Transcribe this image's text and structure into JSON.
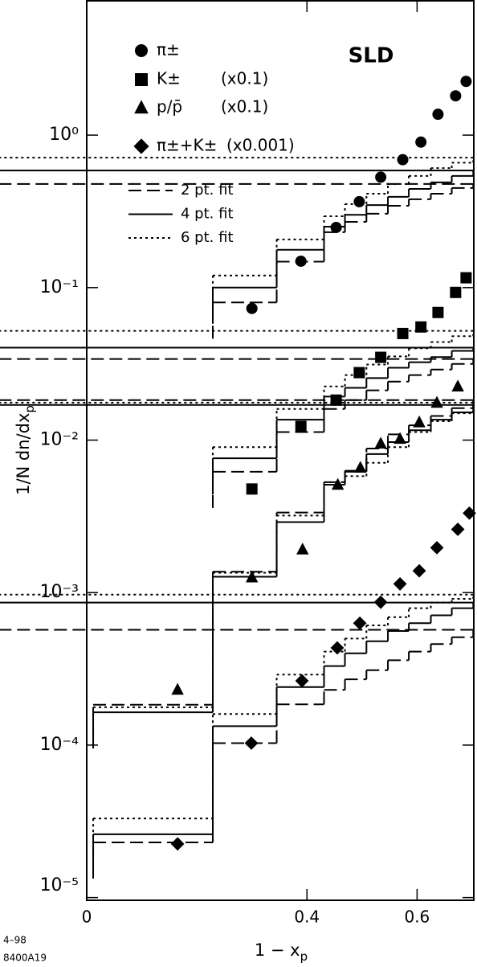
{
  "chart_data": {
    "type": "scatter",
    "log_y": true,
    "annotation": "SLD",
    "footnotes": [
      "4–98",
      "8400A19"
    ],
    "xlabel": {
      "text": "1 − x",
      "sub": "p"
    },
    "ylabel": {
      "text": "1/N dn/dx",
      "sub": "p"
    },
    "xlim": [
      0,
      0.703
    ],
    "ylim": [
      9.6e-06,
      7.6
    ],
    "xticks": [
      0,
      0.4,
      0.6
    ],
    "yticks": [
      {
        "value": 1,
        "label": "10⁰"
      },
      {
        "value": 0.1,
        "label": "10⁻¹"
      },
      {
        "value": 0.01,
        "label": "10⁻²"
      },
      {
        "value": 0.001,
        "label": "10⁻³"
      },
      {
        "value": 0.0001,
        "label": "10⁻⁴"
      },
      {
        "value": 1e-05,
        "label": "10⁻⁵"
      }
    ],
    "color": "#000000",
    "series": [
      {
        "name": "π±",
        "marker": "circle",
        "x": [
          0.3,
          0.389,
          0.453,
          0.495,
          0.534,
          0.574,
          0.607,
          0.638,
          0.67,
          0.689
        ],
        "values": [
          0.073,
          0.149,
          0.248,
          0.366,
          0.53,
          0.69,
          0.9,
          1.37,
          1.81,
          2.25
        ]
      },
      {
        "name": "K±",
        "marker": "square",
        "scale_label": "(x0.1)",
        "x": [
          0.3,
          0.389,
          0.453,
          0.495,
          0.534,
          0.574,
          0.607,
          0.638,
          0.67,
          0.689
        ],
        "values": [
          0.00478,
          0.0123,
          0.0183,
          0.0277,
          0.0349,
          0.05,
          0.0552,
          0.0687,
          0.093,
          0.116
        ]
      },
      {
        "name": "p/p̄",
        "marker": "triangle",
        "scale_label": "(x0.1)",
        "x": [
          0.165,
          0.3,
          0.392,
          0.456,
          0.497,
          0.534,
          0.569,
          0.604,
          0.636,
          0.674
        ],
        "values": [
          0.000231,
          0.00126,
          0.00192,
          0.0051,
          0.0066,
          0.0095,
          0.0102,
          0.0131,
          0.0176,
          0.0225
        ]
      },
      {
        "name": "π±+K±",
        "marker": "diamond",
        "scale_label": "(x0.001)",
        "x": [
          0.165,
          0.299,
          0.391,
          0.455,
          0.496,
          0.534,
          0.569,
          0.604,
          0.636,
          0.674,
          0.695
        ],
        "values": [
          2.25e-05,
          0.000103,
          0.000264,
          0.000434,
          0.00063,
          0.000865,
          0.00114,
          0.00139,
          0.00197,
          0.0026,
          0.00332
        ]
      }
    ],
    "bin_edges": [
      0.0117,
      0.229,
      0.345,
      0.431,
      0.469,
      0.508,
      0.547,
      0.585,
      0.625,
      0.663,
      0.702
    ],
    "fits": [
      {
        "name": "2 pt. fit",
        "dash": "dashed",
        "curves": [
          [
            null,
            0.08,
            0.148,
            0.231,
            0.27,
            0.305,
            0.344,
            0.38,
            0.413,
            0.45,
            0.478
          ],
          [
            null,
            0.0062,
            0.0113,
            0.016,
            0.0183,
            0.0212,
            0.0242,
            0.0267,
            0.029,
            0.0316,
            0.034
          ],
          [
            0.000184,
            0.00137,
            0.00335,
            0.0053,
            0.0063,
            0.0088,
            0.0109,
            0.0125,
            0.0144,
            0.0162,
            0.0183
          ],
          [
            2.3e-05,
            0.000103,
            0.000185,
            0.00023,
            0.00027,
            0.00031,
            0.00036,
            0.00041,
            0.00046,
            0.00051,
            0.00057
          ]
        ]
      },
      {
        "name": "4 pt. fit",
        "dash": "solid",
        "curves": [
          [
            null,
            0.1,
            0.177,
            0.251,
            0.3,
            0.348,
            0.394,
            0.444,
            0.49,
            0.54,
            0.586
          ],
          [
            null,
            0.0076,
            0.0136,
            0.0193,
            0.022,
            0.0255,
            0.0298,
            0.0324,
            0.035,
            0.0385,
            0.0404
          ],
          [
            0.000164,
            0.00127,
            0.0029,
            0.0051,
            0.0062,
            0.0081,
            0.0097,
            0.0116,
            0.0136,
            0.0152,
            0.017
          ],
          [
            2.6e-05,
            0.000133,
            0.00024,
            0.00033,
            0.0004,
            0.00048,
            0.00056,
            0.00063,
            0.00071,
            0.00079,
            0.00086
          ]
        ]
      },
      {
        "name": "6 pt. fit",
        "dash": "dotted",
        "curves": [
          [
            null,
            0.12,
            0.207,
            0.294,
            0.353,
            0.413,
            0.478,
            0.54,
            0.608,
            0.66,
            0.712
          ],
          [
            null,
            0.009,
            0.016,
            0.0225,
            0.0267,
            0.0313,
            0.0354,
            0.04,
            0.044,
            0.048,
            0.052
          ],
          [
            0.000177,
            0.00135,
            0.0032,
            0.0053,
            0.0058,
            0.0071,
            0.009,
            0.0113,
            0.0133,
            0.015,
            0.0176
          ],
          [
            3.3e-05,
            0.00016,
            0.00029,
            0.00041,
            0.0005,
            0.00061,
            0.00069,
            0.00079,
            0.00086,
            0.00091,
            0.00097
          ]
        ]
      }
    ]
  }
}
